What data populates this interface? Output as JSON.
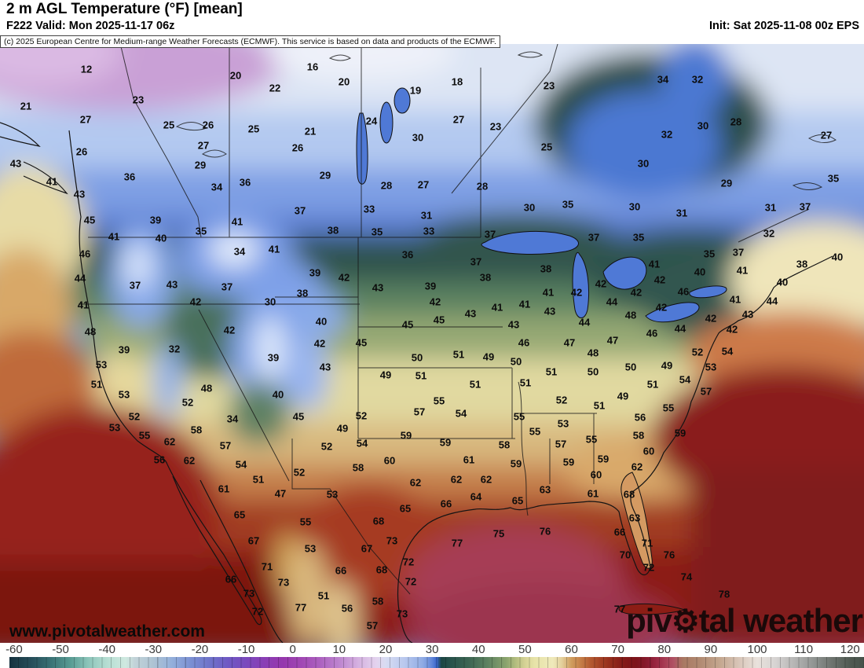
{
  "header": {
    "title": "2 m AGL Temperature (°F) [mean]",
    "subtitle": "F222 Valid: Mon 2025-11-17 06z",
    "init": "Init: Sat 2025-11-08 00z EPS"
  },
  "copyright": "(c) 2025 European Centre for Medium-range Weather Forecasts (ECMWF). This service is based on data and products of the ECMWF.",
  "watermark": "www.pivotalweather.com",
  "logo": {
    "part1": "piv",
    "gear": "⚙",
    "part2": "tal weather"
  },
  "colorbar": {
    "unit": "°F",
    "range": [
      -61,
      123
    ],
    "ticks": [
      -60,
      -50,
      -40,
      -30,
      -20,
      -10,
      0,
      10,
      20,
      30,
      40,
      50,
      60,
      70,
      80,
      90,
      100,
      110,
      120
    ],
    "stops": [
      [
        -61,
        "#16323f"
      ],
      [
        -56,
        "#27505c"
      ],
      [
        -52,
        "#3a7376"
      ],
      [
        -48,
        "#579a92"
      ],
      [
        -44,
        "#8cc5ba"
      ],
      [
        -40,
        "#b5ddd2"
      ],
      [
        -36,
        "#cfe9e0"
      ],
      [
        -34,
        "#c2d3d8"
      ],
      [
        -30,
        "#adc3d3"
      ],
      [
        -26,
        "#93afdb"
      ],
      [
        -22,
        "#7b90d3"
      ],
      [
        -18,
        "#6f74ca"
      ],
      [
        -14,
        "#6f59c4"
      ],
      [
        -10,
        "#7a49bd"
      ],
      [
        -6,
        "#8a3eb5"
      ],
      [
        -2,
        "#9637ad"
      ],
      [
        2,
        "#a148b4"
      ],
      [
        6,
        "#ad62c0"
      ],
      [
        10,
        "#bd84cf"
      ],
      [
        14,
        "#d4b0e0"
      ],
      [
        18,
        "#e3d3ee"
      ],
      [
        20,
        "#d8dcf2"
      ],
      [
        24,
        "#b9c8ee"
      ],
      [
        28,
        "#8fabe4"
      ],
      [
        30,
        "#5f85d8"
      ],
      [
        31,
        "#3a66cc"
      ],
      [
        32,
        "#1c4644"
      ],
      [
        34,
        "#27524b"
      ],
      [
        38,
        "#3c6653"
      ],
      [
        42,
        "#5d8260"
      ],
      [
        46,
        "#8ba46e"
      ],
      [
        48,
        "#b3bd7f"
      ],
      [
        50,
        "#d5d295"
      ],
      [
        52,
        "#e7e3a8"
      ],
      [
        56,
        "#efe9bb"
      ],
      [
        58,
        "#e3cf9a"
      ],
      [
        60,
        "#cf9c5d"
      ],
      [
        62,
        "#c57f48"
      ],
      [
        64,
        "#b55c32"
      ],
      [
        66,
        "#a64426"
      ],
      [
        68,
        "#97301d"
      ],
      [
        70,
        "#8a2019"
      ],
      [
        72,
        "#811718"
      ],
      [
        74,
        "#7c141b"
      ],
      [
        76,
        "#85192b"
      ],
      [
        78,
        "#96243f"
      ],
      [
        80,
        "#a63a52"
      ],
      [
        82,
        "#b05264"
      ],
      [
        84,
        "#a87862"
      ],
      [
        88,
        "#b28c74"
      ],
      [
        92,
        "#c4a78f"
      ],
      [
        96,
        "#d8c5b8"
      ],
      [
        100,
        "#e9e2dc"
      ],
      [
        104,
        "#d6d3d2"
      ],
      [
        108,
        "#b5b5b4"
      ],
      [
        112,
        "#929694"
      ],
      [
        116,
        "#6e746f"
      ],
      [
        120,
        "#4f5a52"
      ],
      [
        123,
        "#46524a"
      ]
    ]
  },
  "map_labels": [
    [
      12,
      110,
      88
    ],
    [
      20,
      300,
      96
    ],
    [
      22,
      350,
      112
    ],
    [
      16,
      398,
      85
    ],
    [
      20,
      438,
      104
    ],
    [
      19,
      529,
      115
    ],
    [
      18,
      582,
      104
    ],
    [
      23,
      699,
      109
    ],
    [
      34,
      844,
      101
    ],
    [
      32,
      888,
      101
    ],
    [
      21,
      33,
      135
    ],
    [
      23,
      176,
      127
    ],
    [
      27,
      109,
      152
    ],
    [
      25,
      215,
      159
    ],
    [
      26,
      265,
      159
    ],
    [
      25,
      323,
      164
    ],
    [
      24,
      473,
      154
    ],
    [
      27,
      584,
      152
    ],
    [
      23,
      631,
      161
    ],
    [
      21,
      395,
      167
    ],
    [
      30,
      532,
      175
    ],
    [
      28,
      937,
      155
    ],
    [
      30,
      895,
      160
    ],
    [
      32,
      849,
      171
    ],
    [
      27,
      1052,
      172
    ],
    [
      27,
      259,
      185
    ],
    [
      26,
      104,
      193
    ],
    [
      26,
      379,
      188
    ],
    [
      25,
      696,
      187
    ],
    [
      29,
      255,
      210
    ],
    [
      43,
      20,
      208
    ],
    [
      30,
      819,
      208
    ],
    [
      36,
      165,
      225
    ],
    [
      34,
      276,
      238
    ],
    [
      36,
      312,
      232
    ],
    [
      41,
      66,
      231
    ],
    [
      29,
      414,
      223
    ],
    [
      28,
      492,
      236
    ],
    [
      27,
      539,
      235
    ],
    [
      28,
      614,
      237
    ],
    [
      29,
      925,
      233
    ],
    [
      35,
      1061,
      227
    ],
    [
      43,
      101,
      247
    ],
    [
      30,
      674,
      264
    ],
    [
      35,
      723,
      260
    ],
    [
      37,
      382,
      268
    ],
    [
      33,
      470,
      266
    ],
    [
      31,
      543,
      274
    ],
    [
      30,
      808,
      263
    ],
    [
      31,
      868,
      271
    ],
    [
      31,
      981,
      264
    ],
    [
      37,
      1025,
      263
    ],
    [
      45,
      114,
      280
    ],
    [
      39,
      198,
      280
    ],
    [
      41,
      302,
      282
    ],
    [
      35,
      256,
      294
    ],
    [
      38,
      424,
      293
    ],
    [
      35,
      480,
      295
    ],
    [
      33,
      546,
      294
    ],
    [
      37,
      624,
      298
    ],
    [
      32,
      979,
      297
    ],
    [
      35,
      813,
      302
    ],
    [
      37,
      756,
      302
    ],
    [
      41,
      145,
      301
    ],
    [
      40,
      205,
      303
    ],
    [
      46,
      108,
      323
    ],
    [
      34,
      305,
      320
    ],
    [
      41,
      349,
      317
    ],
    [
      36,
      519,
      324
    ],
    [
      35,
      903,
      323
    ],
    [
      37,
      940,
      321
    ],
    [
      40,
      1066,
      327
    ],
    [
      44,
      102,
      354
    ],
    [
      37,
      606,
      333
    ],
    [
      38,
      1021,
      336
    ],
    [
      41,
      833,
      336
    ],
    [
      39,
      401,
      347
    ],
    [
      42,
      438,
      353
    ],
    [
      38,
      618,
      353
    ],
    [
      38,
      695,
      342
    ],
    [
      41,
      945,
      344
    ],
    [
      40,
      891,
      346
    ],
    [
      37,
      172,
      363
    ],
    [
      43,
      219,
      362
    ],
    [
      43,
      481,
      366
    ],
    [
      39,
      548,
      364
    ],
    [
      37,
      289,
      365
    ],
    [
      40,
      996,
      359
    ],
    [
      42,
      840,
      356
    ],
    [
      42,
      765,
      361
    ],
    [
      41,
      106,
      388
    ],
    [
      42,
      249,
      384
    ],
    [
      30,
      344,
      384
    ],
    [
      38,
      385,
      373
    ],
    [
      42,
      554,
      384
    ],
    [
      46,
      870,
      371
    ],
    [
      42,
      810,
      372
    ],
    [
      41,
      698,
      372
    ],
    [
      42,
      734,
      372
    ],
    [
      41,
      633,
      391
    ],
    [
      41,
      668,
      387
    ],
    [
      44,
      779,
      384
    ],
    [
      41,
      936,
      381
    ],
    [
      44,
      983,
      383
    ],
    [
      43,
      700,
      396
    ],
    [
      43,
      599,
      399
    ],
    [
      42,
      842,
      391
    ],
    [
      48,
      803,
      401
    ],
    [
      43,
      952,
      400
    ],
    [
      40,
      409,
      409
    ],
    [
      44,
      744,
      410
    ],
    [
      42,
      905,
      405
    ],
    [
      48,
      115,
      422
    ],
    [
      42,
      292,
      420
    ],
    [
      45,
      519,
      413
    ],
    [
      45,
      559,
      407
    ],
    [
      44,
      866,
      418
    ],
    [
      42,
      932,
      419
    ],
    [
      43,
      654,
      413
    ],
    [
      46,
      830,
      424
    ],
    [
      39,
      158,
      445
    ],
    [
      32,
      222,
      444
    ],
    [
      46,
      667,
      436
    ],
    [
      47,
      725,
      436
    ],
    [
      47,
      780,
      433
    ],
    [
      42,
      407,
      437
    ],
    [
      45,
      460,
      436
    ],
    [
      39,
      348,
      455
    ],
    [
      48,
      755,
      449
    ],
    [
      50,
      531,
      455
    ],
    [
      51,
      584,
      451
    ],
    [
      49,
      622,
      454
    ],
    [
      50,
      657,
      460
    ],
    [
      43,
      414,
      467
    ],
    [
      53,
      129,
      464
    ],
    [
      52,
      888,
      448
    ],
    [
      54,
      926,
      447
    ],
    [
      50,
      755,
      473
    ],
    [
      50,
      803,
      467
    ],
    [
      49,
      849,
      465
    ],
    [
      53,
      905,
      467
    ],
    [
      49,
      491,
      477
    ],
    [
      51,
      536,
      478
    ],
    [
      51,
      702,
      473
    ],
    [
      51,
      123,
      489
    ],
    [
      48,
      263,
      494
    ],
    [
      51,
      605,
      489
    ],
    [
      51,
      669,
      487
    ],
    [
      54,
      872,
      483
    ],
    [
      51,
      831,
      489
    ],
    [
      53,
      158,
      502
    ],
    [
      40,
      354,
      502
    ],
    [
      57,
      899,
      498
    ],
    [
      52,
      239,
      512
    ],
    [
      49,
      793,
      504
    ],
    [
      52,
      715,
      509
    ],
    [
      55,
      559,
      510
    ],
    [
      52,
      171,
      530
    ],
    [
      34,
      296,
      533
    ],
    [
      45,
      380,
      530
    ],
    [
      51,
      763,
      516
    ],
    [
      57,
      534,
      524
    ],
    [
      54,
      587,
      526
    ],
    [
      55,
      851,
      519
    ],
    [
      52,
      460,
      529
    ],
    [
      55,
      661,
      530
    ],
    [
      56,
      815,
      531
    ],
    [
      53,
      717,
      539
    ],
    [
      53,
      146,
      544
    ],
    [
      58,
      250,
      547
    ],
    [
      49,
      436,
      545
    ],
    [
      55,
      681,
      549
    ],
    [
      55,
      184,
      554
    ],
    [
      58,
      813,
      554
    ],
    [
      59,
      866,
      551
    ],
    [
      55,
      753,
      559
    ],
    [
      59,
      517,
      554
    ],
    [
      62,
      216,
      562
    ],
    [
      57,
      287,
      567
    ],
    [
      52,
      416,
      568
    ],
    [
      54,
      461,
      564
    ],
    [
      59,
      567,
      563
    ],
    [
      58,
      642,
      566
    ],
    [
      57,
      714,
      565
    ],
    [
      60,
      826,
      574
    ],
    [
      56,
      203,
      585
    ],
    [
      62,
      241,
      586
    ],
    [
      60,
      496,
      586
    ],
    [
      61,
      597,
      585
    ],
    [
      59,
      657,
      590
    ],
    [
      59,
      724,
      588
    ],
    [
      59,
      768,
      584
    ],
    [
      58,
      456,
      595
    ],
    [
      54,
      307,
      591
    ],
    [
      52,
      381,
      601
    ],
    [
      62,
      811,
      594
    ],
    [
      60,
      759,
      604
    ],
    [
      51,
      329,
      610
    ],
    [
      62,
      529,
      614
    ],
    [
      62,
      581,
      610
    ],
    [
      62,
      619,
      610
    ],
    [
      63,
      694,
      623
    ],
    [
      47,
      357,
      628
    ],
    [
      61,
      285,
      622
    ],
    [
      53,
      423,
      629
    ],
    [
      64,
      606,
      632
    ],
    [
      61,
      755,
      628
    ],
    [
      68,
      801,
      629
    ],
    [
      66,
      568,
      641
    ],
    [
      65,
      659,
      637
    ],
    [
      65,
      516,
      647
    ],
    [
      65,
      305,
      655
    ],
    [
      63,
      808,
      659
    ],
    [
      55,
      389,
      664
    ],
    [
      68,
      482,
      663
    ],
    [
      75,
      635,
      679
    ],
    [
      76,
      694,
      676
    ],
    [
      66,
      789,
      677
    ],
    [
      67,
      323,
      688
    ],
    [
      73,
      499,
      688
    ],
    [
      77,
      582,
      691
    ],
    [
      53,
      395,
      698
    ],
    [
      67,
      467,
      698
    ],
    [
      71,
      824,
      691
    ],
    [
      70,
      796,
      706
    ],
    [
      76,
      852,
      706
    ],
    [
      72,
      520,
      715
    ],
    [
      71,
      340,
      721
    ],
    [
      66,
      434,
      726
    ],
    [
      68,
      486,
      725
    ],
    [
      72,
      826,
      722
    ],
    [
      66,
      294,
      737
    ],
    [
      72,
      523,
      740
    ],
    [
      74,
      874,
      734
    ],
    [
      73,
      361,
      741
    ],
    [
      51,
      412,
      758
    ],
    [
      73,
      317,
      755
    ],
    [
      78,
      922,
      756
    ],
    [
      58,
      481,
      765
    ],
    [
      56,
      442,
      774
    ],
    [
      77,
      383,
      773
    ],
    [
      72,
      328,
      778
    ],
    [
      77,
      789,
      775
    ],
    [
      73,
      512,
      781
    ],
    [
      57,
      474,
      796
    ]
  ]
}
